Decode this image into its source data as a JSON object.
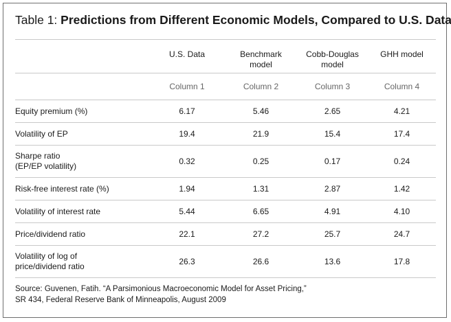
{
  "title": {
    "prefix": "Table 1: ",
    "main": "Predictions from Different Economic Models, Compared to U.S. Data"
  },
  "table": {
    "headers": [
      "U.S. Data",
      "Benchmark\nmodel",
      "Cobb-Douglas\nmodel",
      "GHH model"
    ],
    "column_numbers": [
      "Column 1",
      "Column 2",
      "Column 3",
      "Column 4"
    ],
    "rows": [
      {
        "label": "Equity premium (%)",
        "values": [
          "6.17",
          "5.46",
          "2.65",
          "4.21"
        ]
      },
      {
        "label": "Volatility of EP",
        "values": [
          "19.4",
          "21.9",
          "15.4",
          "17.4"
        ]
      },
      {
        "label": "Sharpe ratio\n(EP/EP volatility)",
        "values": [
          "0.32",
          "0.25",
          "0.17",
          "0.24"
        ]
      },
      {
        "label": "Risk-free interest rate (%)",
        "values": [
          "1.94",
          "1.31",
          "2.87",
          "1.42"
        ]
      },
      {
        "label": "Volatility of interest rate",
        "values": [
          "5.44",
          "6.65",
          "4.91",
          "4.10"
        ]
      },
      {
        "label": "Price/dividend ratio",
        "values": [
          "22.1",
          "27.2",
          "25.7",
          "24.7"
        ]
      },
      {
        "label": "Volatility of log of\nprice/dividend ratio",
        "values": [
          "26.3",
          "26.6",
          "13.6",
          "17.8"
        ]
      }
    ]
  },
  "source": {
    "line1": "Source: Guvenen, Fatih. “A Parsimonious Macroeconomic Model for Asset Pricing,”",
    "line2": "SR 434, Federal Reserve Bank of Minneapolis, August 2009"
  }
}
